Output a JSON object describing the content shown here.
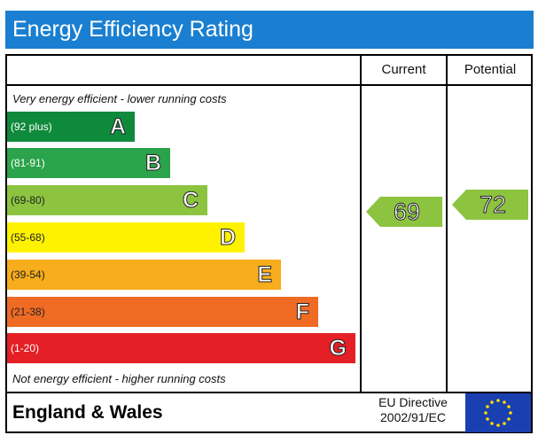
{
  "title": "Energy Efficiency Rating",
  "columns": {
    "current": "Current",
    "potential": "Potential"
  },
  "notes": {
    "top": "Very energy efficient - lower running costs",
    "bottom": "Not energy efficient - higher running costs"
  },
  "bands": [
    {
      "range": "(92 plus)",
      "letter": "A",
      "color": "#0f8a3c"
    },
    {
      "range": "(81-91)",
      "letter": "B",
      "color": "#2ba34a"
    },
    {
      "range": "(69-80)",
      "letter": "C",
      "color": "#8cc43f"
    },
    {
      "range": "(55-68)",
      "letter": "D",
      "color": "#fff200"
    },
    {
      "range": "(39-54)",
      "letter": "E",
      "color": "#f7ad1c"
    },
    {
      "range": "(21-38)",
      "letter": "F",
      "color": "#ef6b24"
    },
    {
      "range": "(1-20)",
      "letter": "G",
      "color": "#e41f26"
    }
  ],
  "ratings": {
    "current": {
      "value": "69",
      "color": "#8cc43f"
    },
    "potential": {
      "value": "72",
      "color": "#8cc43f"
    }
  },
  "footer": {
    "region": "England & Wales",
    "directive_line1": "EU Directive",
    "directive_line2": "2002/91/EC"
  }
}
